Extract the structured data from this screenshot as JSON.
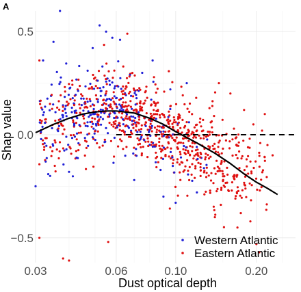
{
  "panel_label": "A",
  "chart_data": {
    "type": "scatter",
    "xlabel": "Dust optical depth",
    "ylabel": "Shap value",
    "x_scale": "log",
    "xlim": [
      0.03,
      0.28
    ],
    "ylim": [
      -0.62,
      0.6
    ],
    "x_ticks": [
      0.03,
      0.06,
      0.1,
      0.2
    ],
    "x_tick_labels": [
      "0.03",
      "0.06",
      "0.10",
      "0.20"
    ],
    "y_ticks": [
      -0.5,
      0.0,
      0.5
    ],
    "y_tick_labels": [
      "−0.5",
      "0.0",
      "0.5"
    ],
    "grid": true,
    "legend_position": "bottom-right",
    "reference_line": {
      "y": 0.0,
      "style": "dashed",
      "color": "#000000"
    },
    "smooth_curve": {
      "color": "#000000",
      "x": [
        0.03,
        0.035,
        0.04,
        0.045,
        0.05,
        0.055,
        0.06,
        0.07,
        0.08,
        0.09,
        0.1,
        0.12,
        0.14,
        0.16,
        0.18,
        0.2,
        0.22,
        0.24
      ],
      "y": [
        0.01,
        0.05,
        0.08,
        0.1,
        0.11,
        0.115,
        0.115,
        0.105,
        0.08,
        0.05,
        0.015,
        -0.04,
        -0.09,
        -0.14,
        -0.19,
        -0.23,
        -0.26,
        -0.29
      ]
    },
    "series": [
      {
        "name": "Western Atlantic",
        "color": "#1f1fd6",
        "cloud": [
          {
            "x": 0.031,
            "y": 0.01,
            "sy": 0.07,
            "n": 20
          },
          {
            "x": 0.034,
            "y": 0.05,
            "sy": 0.1,
            "n": 28
          },
          {
            "x": 0.037,
            "y": 0.07,
            "sy": 0.1,
            "n": 32
          },
          {
            "x": 0.04,
            "y": 0.08,
            "sy": 0.11,
            "n": 38
          },
          {
            "x": 0.043,
            "y": 0.09,
            "sy": 0.11,
            "n": 40
          },
          {
            "x": 0.046,
            "y": 0.1,
            "sy": 0.11,
            "n": 42
          },
          {
            "x": 0.05,
            "y": 0.11,
            "sy": 0.11,
            "n": 48
          },
          {
            "x": 0.054,
            "y": 0.12,
            "sy": 0.1,
            "n": 48
          },
          {
            "x": 0.058,
            "y": 0.12,
            "sy": 0.09,
            "n": 45
          },
          {
            "x": 0.063,
            "y": 0.11,
            "sy": 0.08,
            "n": 40
          },
          {
            "x": 0.068,
            "y": 0.1,
            "sy": 0.08,
            "n": 36
          },
          {
            "x": 0.074,
            "y": 0.07,
            "sy": 0.09,
            "n": 30
          },
          {
            "x": 0.08,
            "y": 0.04,
            "sy": 0.09,
            "n": 26
          },
          {
            "x": 0.087,
            "y": 0.0,
            "sy": 0.1,
            "n": 22
          },
          {
            "x": 0.095,
            "y": -0.03,
            "sy": 0.1,
            "n": 18
          },
          {
            "x": 0.105,
            "y": -0.06,
            "sy": 0.09,
            "n": 14
          },
          {
            "x": 0.118,
            "y": -0.09,
            "sy": 0.09,
            "n": 10
          },
          {
            "x": 0.135,
            "y": -0.13,
            "sy": 0.08,
            "n": 6
          }
        ],
        "outliers": [
          {
            "x": 0.037,
            "y": 0.6
          },
          {
            "x": 0.035,
            "y": 0.45
          },
          {
            "x": 0.032,
            "y": 0.36
          },
          {
            "x": 0.052,
            "y": 0.53
          },
          {
            "x": 0.055,
            "y": 0.5
          },
          {
            "x": 0.058,
            "y": 0.47
          },
          {
            "x": 0.049,
            "y": 0.42
          },
          {
            "x": 0.062,
            "y": 0.46
          },
          {
            "x": 0.03,
            "y": -0.25
          },
          {
            "x": 0.034,
            "y": -0.2
          },
          {
            "x": 0.04,
            "y": -0.18
          },
          {
            "x": 0.09,
            "y": -0.3
          },
          {
            "x": 0.082,
            "y": 0.36
          },
          {
            "x": 0.075,
            "y": 0.3
          },
          {
            "x": 0.11,
            "y": 0.25
          },
          {
            "x": 0.12,
            "y": -0.28
          },
          {
            "x": 0.1,
            "y": -0.33
          },
          {
            "x": 0.07,
            "y": -0.22
          }
        ]
      },
      {
        "name": "Eastern Atlantic",
        "color": "#e01010",
        "cloud": [
          {
            "x": 0.031,
            "y": 0.02,
            "sy": 0.09,
            "n": 18
          },
          {
            "x": 0.035,
            "y": 0.05,
            "sy": 0.11,
            "n": 24
          },
          {
            "x": 0.04,
            "y": 0.08,
            "sy": 0.11,
            "n": 28
          },
          {
            "x": 0.045,
            "y": 0.1,
            "sy": 0.11,
            "n": 32
          },
          {
            "x": 0.05,
            "y": 0.11,
            "sy": 0.11,
            "n": 36
          },
          {
            "x": 0.056,
            "y": 0.12,
            "sy": 0.1,
            "n": 40
          },
          {
            "x": 0.062,
            "y": 0.12,
            "sy": 0.09,
            "n": 44
          },
          {
            "x": 0.068,
            "y": 0.1,
            "sy": 0.09,
            "n": 46
          },
          {
            "x": 0.075,
            "y": 0.08,
            "sy": 0.09,
            "n": 50
          },
          {
            "x": 0.082,
            "y": 0.05,
            "sy": 0.09,
            "n": 52
          },
          {
            "x": 0.09,
            "y": 0.02,
            "sy": 0.1,
            "n": 54
          },
          {
            "x": 0.1,
            "y": -0.01,
            "sy": 0.1,
            "n": 56
          },
          {
            "x": 0.11,
            "y": -0.04,
            "sy": 0.1,
            "n": 52
          },
          {
            "x": 0.122,
            "y": -0.07,
            "sy": 0.11,
            "n": 50
          },
          {
            "x": 0.135,
            "y": -0.1,
            "sy": 0.11,
            "n": 46
          },
          {
            "x": 0.15,
            "y": -0.13,
            "sy": 0.11,
            "n": 40
          },
          {
            "x": 0.165,
            "y": -0.16,
            "sy": 0.11,
            "n": 32
          },
          {
            "x": 0.18,
            "y": -0.19,
            "sy": 0.11,
            "n": 24
          },
          {
            "x": 0.2,
            "y": -0.22,
            "sy": 0.1,
            "n": 16
          },
          {
            "x": 0.22,
            "y": -0.24,
            "sy": 0.1,
            "n": 8
          }
        ],
        "outliers": [
          {
            "x": 0.031,
            "y": -0.5
          },
          {
            "x": 0.038,
            "y": -0.6
          },
          {
            "x": 0.04,
            "y": -0.61
          },
          {
            "x": 0.056,
            "y": -0.52
          },
          {
            "x": 0.066,
            "y": 0.49
          },
          {
            "x": 0.031,
            "y": 0.36
          },
          {
            "x": 0.17,
            "y": -0.45
          },
          {
            "x": 0.2,
            "y": -0.53
          },
          {
            "x": 0.205,
            "y": -0.57
          },
          {
            "x": 0.21,
            "y": 0.02
          },
          {
            "x": 0.215,
            "y": 0.1
          },
          {
            "x": 0.195,
            "y": 0.05
          },
          {
            "x": 0.18,
            "y": 0.12
          },
          {
            "x": 0.16,
            "y": 0.2
          },
          {
            "x": 0.145,
            "y": 0.25
          },
          {
            "x": 0.22,
            "y": -0.05
          },
          {
            "x": 0.23,
            "y": -0.1
          },
          {
            "x": 0.14,
            "y": -0.4
          },
          {
            "x": 0.19,
            "y": -0.42
          },
          {
            "x": 0.175,
            "y": -0.38
          }
        ]
      }
    ]
  }
}
